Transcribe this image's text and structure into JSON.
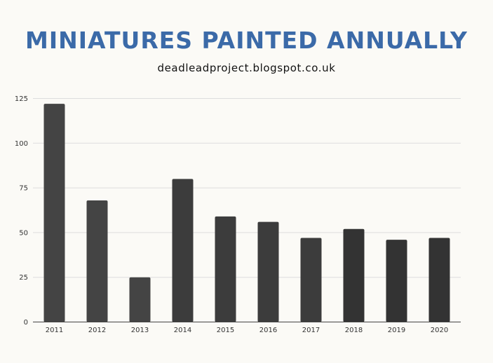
{
  "colors": {
    "background": "#fbfaf6",
    "title": "#3b6aa8",
    "bar": "#3f3f3f",
    "grid": "#dddddd",
    "axis": "#444444"
  },
  "chart_data": {
    "type": "bar",
    "title": "MINIATURES PAINTED ANNUALLY",
    "subtitle": "deadleadproject.blogspot.co.uk",
    "xlabel": "",
    "ylabel": "",
    "categories": [
      "2011",
      "2012",
      "2013",
      "2014",
      "2015",
      "2016",
      "2017",
      "2018",
      "2019",
      "2020"
    ],
    "values": [
      122,
      68,
      25,
      80,
      59,
      56,
      47,
      52,
      46,
      47
    ],
    "ylim": [
      0,
      125
    ],
    "yticks": [
      "0",
      "25",
      "50",
      "75",
      "100",
      "125"
    ],
    "grid": true,
    "legend": "none"
  }
}
